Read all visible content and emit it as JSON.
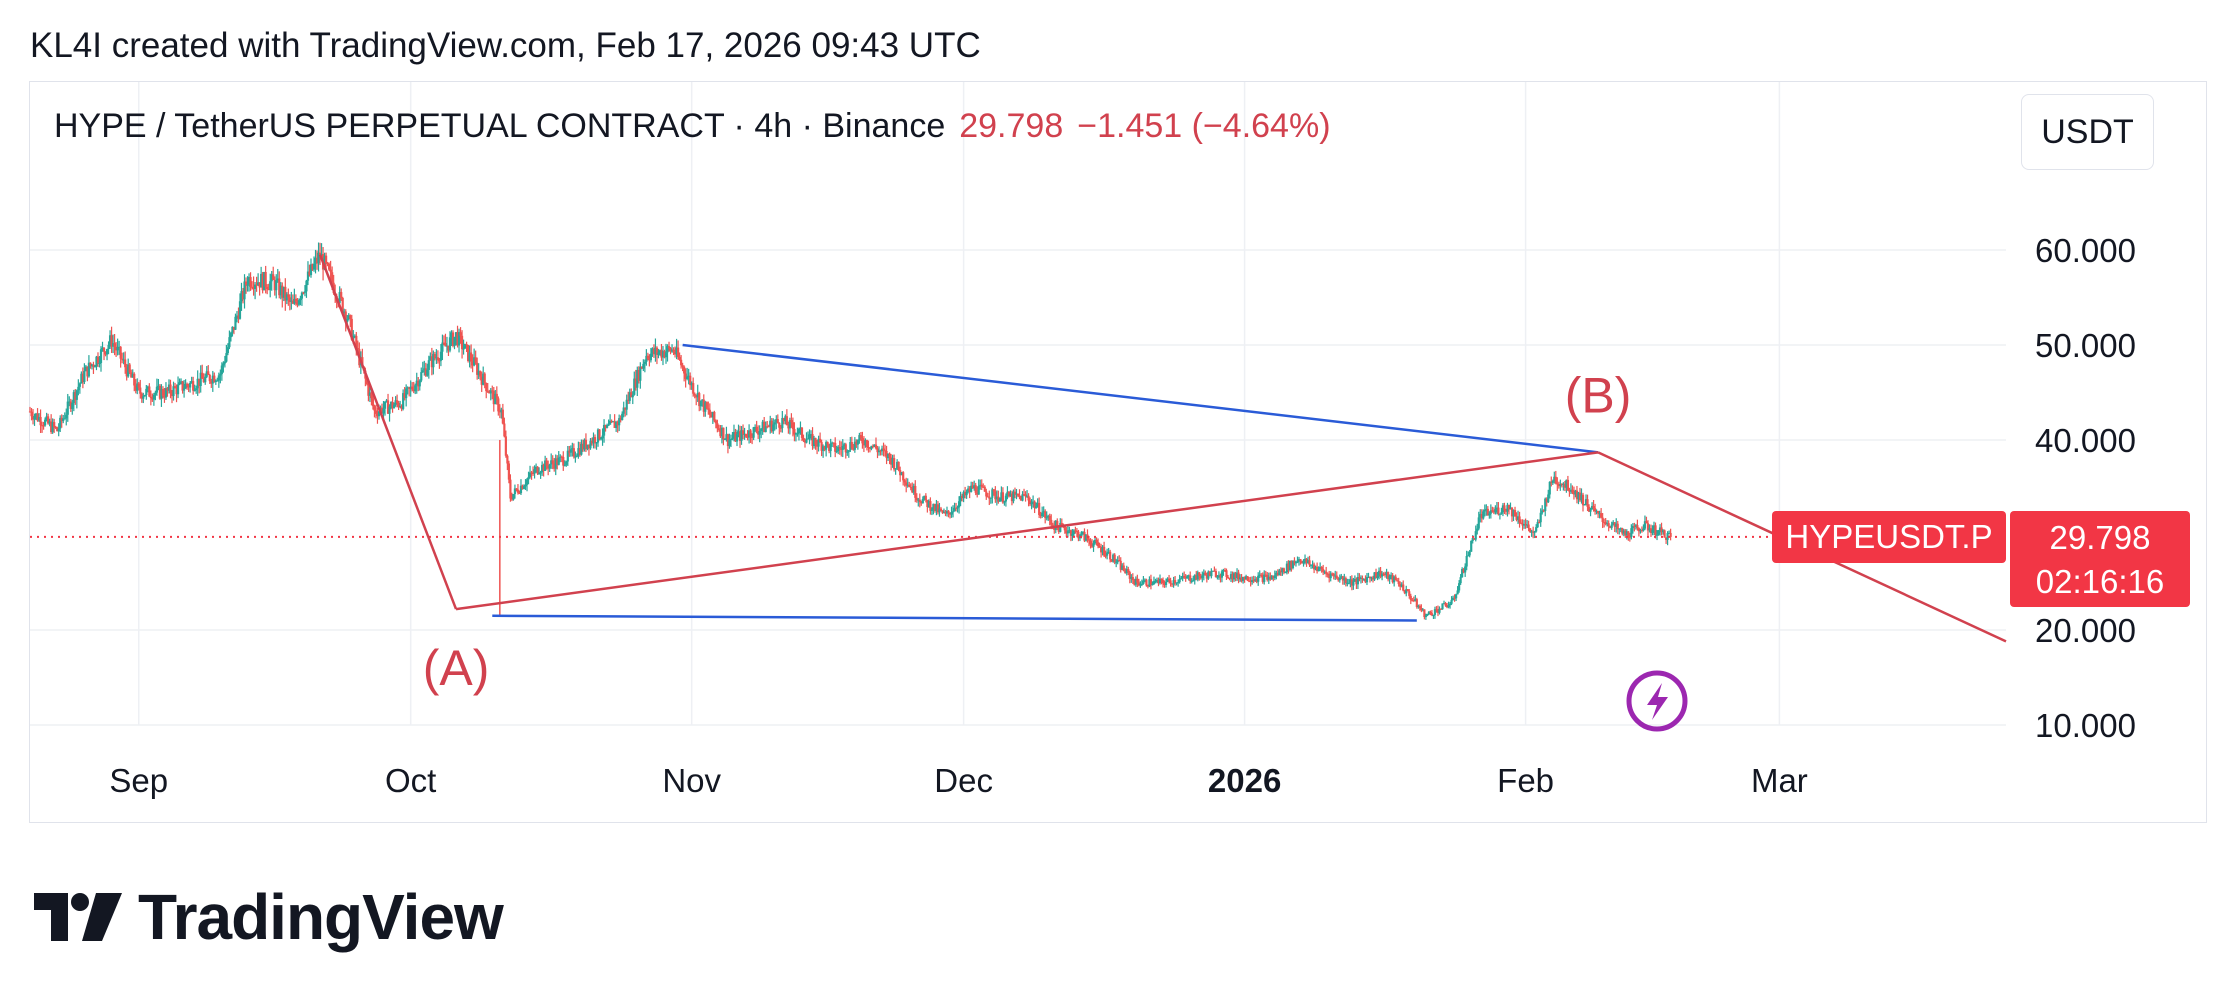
{
  "header": {
    "attribution": "KL4I created with TradingView.com, Feb 17, 2026 09:43 UTC"
  },
  "legend": {
    "symbol": "HYPE / TetherUS PERPETUAL CONTRACT · 4h · Binance",
    "last_price": "29.798",
    "change": "−1.451 (−4.64%)"
  },
  "currency": "USDT",
  "price_tag": {
    "symbol": "HYPEUSDT.P",
    "price": "29.798",
    "countdown": "02:16:16"
  },
  "branding": {
    "logo_text": "TradingView"
  },
  "colors": {
    "up": "#26a69a",
    "down": "#ef5350",
    "annotation_red": "#d1414e",
    "trend_blue": "#2a5bd7",
    "tag_red": "#f23645",
    "icon_purple": "#9c27b0"
  },
  "chart_data": {
    "type": "candlestick",
    "y_axis": {
      "ticks": [
        10,
        20,
        40,
        50,
        60
      ],
      "tick_labels": [
        "10.000",
        "20.000",
        "40.000",
        "50.000",
        "60.000"
      ],
      "range": [
        8,
        68
      ]
    },
    "x_axis": {
      "range": [
        "2025-08-20",
        "2026-03-26"
      ],
      "ticks": [
        {
          "date": "2025-09-01",
          "label": "Sep",
          "bold": false
        },
        {
          "date": "2025-10-01",
          "label": "Oct",
          "bold": false
        },
        {
          "date": "2025-11-01",
          "label": "Nov",
          "bold": false
        },
        {
          "date": "2025-12-01",
          "label": "Dec",
          "bold": false
        },
        {
          "date": "2026-01-01",
          "label": "2026",
          "bold": true
        },
        {
          "date": "2026-02-01",
          "label": "Feb",
          "bold": false
        },
        {
          "date": "2026-03-01",
          "label": "Mar",
          "bold": false
        }
      ]
    },
    "last_price": 29.798,
    "price_path": [
      [
        "2025-08-20",
        43
      ],
      [
        "2025-08-23",
        41
      ],
      [
        "2025-08-26",
        47
      ],
      [
        "2025-08-29",
        50.5
      ],
      [
        "2025-09-01",
        45
      ],
      [
        "2025-09-04",
        45
      ],
      [
        "2025-09-07",
        46
      ],
      [
        "2025-09-10",
        47
      ],
      [
        "2025-09-13",
        57
      ],
      [
        "2025-09-16",
        56.5
      ],
      [
        "2025-09-18",
        54
      ],
      [
        "2025-09-21",
        59.5
      ],
      [
        "2025-09-24",
        53
      ],
      [
        "2025-09-27",
        43
      ],
      [
        "2025-09-30",
        44
      ],
      [
        "2025-10-03",
        48
      ],
      [
        "2025-10-06",
        51
      ],
      [
        "2025-10-08",
        48
      ],
      [
        "2025-10-11",
        43
      ],
      [
        "2025-10-12",
        34
      ],
      [
        "2025-10-15",
        37
      ],
      [
        "2025-10-18",
        38
      ],
      [
        "2025-10-21",
        40
      ],
      [
        "2025-10-24",
        42
      ],
      [
        "2025-10-27",
        49
      ],
      [
        "2025-10-30",
        49.5
      ],
      [
        "2025-11-02",
        44
      ],
      [
        "2025-11-05",
        40
      ],
      [
        "2025-11-08",
        41
      ],
      [
        "2025-11-11",
        42
      ],
      [
        "2025-11-14",
        40
      ],
      [
        "2025-11-17",
        39
      ],
      [
        "2025-11-20",
        40
      ],
      [
        "2025-11-23",
        38
      ],
      [
        "2025-11-26",
        34
      ],
      [
        "2025-11-29",
        32
      ],
      [
        "2025-12-02",
        35
      ],
      [
        "2025-12-05",
        34
      ],
      [
        "2025-12-08",
        34
      ],
      [
        "2025-12-11",
        31
      ],
      [
        "2025-12-14",
        30
      ],
      [
        "2025-12-17",
        28
      ],
      [
        "2025-12-20",
        25
      ],
      [
        "2025-12-23",
        25
      ],
      [
        "2025-12-26",
        25.5
      ],
      [
        "2025-12-29",
        26
      ],
      [
        "2026-01-01",
        25.5
      ],
      [
        "2026-01-04",
        25.5
      ],
      [
        "2026-01-07",
        27.5
      ],
      [
        "2026-01-10",
        26
      ],
      [
        "2026-01-13",
        25
      ],
      [
        "2026-01-16",
        26
      ],
      [
        "2026-01-18",
        25
      ],
      [
        "2026-01-21",
        21.5
      ],
      [
        "2026-01-24",
        23
      ],
      [
        "2026-01-27",
        32
      ],
      [
        "2026-01-30",
        33
      ],
      [
        "2026-02-02",
        30
      ],
      [
        "2026-02-04",
        36
      ],
      [
        "2026-02-06",
        35
      ],
      [
        "2026-02-09",
        32
      ],
      [
        "2026-02-12",
        30
      ],
      [
        "2026-02-14",
        31
      ],
      [
        "2026-02-17",
        29.8
      ]
    ],
    "trendlines": [
      {
        "color": "blue",
        "from": [
          "2025-10-31",
          50
        ],
        "to": [
          "2026-02-09",
          38.7
        ]
      },
      {
        "color": "blue",
        "from": [
          "2025-10-10",
          21.5
        ],
        "to": [
          "2026-01-20",
          21
        ]
      },
      {
        "color": "red",
        "from": [
          "2025-09-21",
          59.5
        ],
        "to": [
          "2025-10-06",
          22.2
        ]
      },
      {
        "color": "red",
        "from": [
          "2025-10-06",
          22.2
        ],
        "to": [
          "2026-02-09",
          38.7
        ]
      },
      {
        "color": "red",
        "from": [
          "2026-02-09",
          38.7
        ],
        "to": [
          "2026-03-26",
          18.8
        ]
      }
    ],
    "annotations": [
      {
        "text": "(A)",
        "date": "2025-10-06",
        "price": 22.2,
        "position": "below"
      },
      {
        "text": "(B)",
        "date": "2026-02-09",
        "price": 38.7,
        "position": "above"
      }
    ]
  }
}
